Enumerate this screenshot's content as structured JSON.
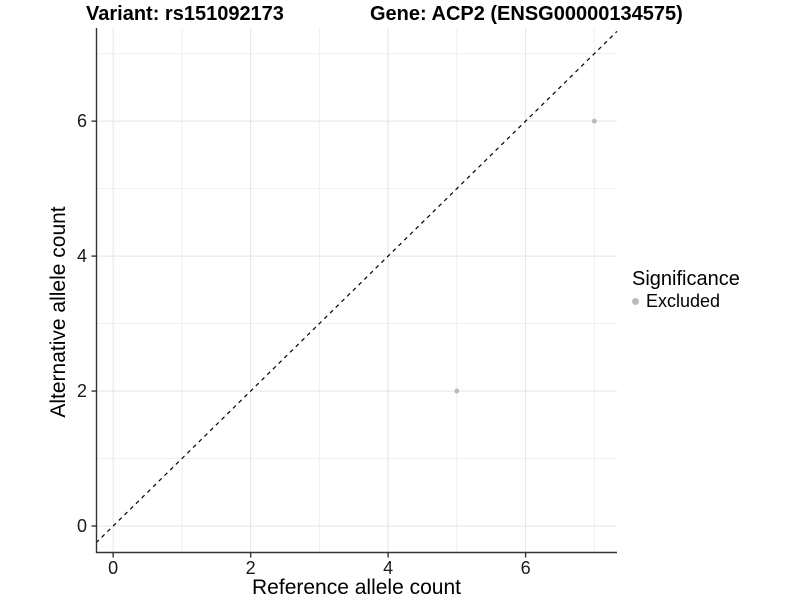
{
  "chart_data": {
    "type": "scatter",
    "title_left": "Variant: rs151092173",
    "title_right": "Gene: ACP2 (ENSG00000134575)",
    "xlabel": "Reference allele count",
    "ylabel": "Alternative allele count",
    "xlim": [
      -0.25,
      7.33
    ],
    "ylim": [
      -0.4,
      7.38
    ],
    "x_ticks": [
      0,
      2,
      4,
      6
    ],
    "y_ticks": [
      0,
      2,
      4,
      6
    ],
    "x_minor_ticks": [
      1,
      3,
      5,
      7
    ],
    "y_minor_ticks": [
      1,
      3,
      5,
      7
    ],
    "grid": true,
    "series": [
      {
        "name": "Excluded",
        "color": "#bcbcbc",
        "points": [
          [
            5,
            2
          ],
          [
            7,
            6
          ]
        ]
      }
    ],
    "reference_line": {
      "type": "identity y=x",
      "style": "dashed",
      "color": "#000000"
    },
    "legend": {
      "title": "Significance",
      "position": "right",
      "items": [
        {
          "label": "Excluded",
          "color": "#bcbcbc"
        }
      ]
    },
    "colors": {
      "grid_major": "#e4e4e4",
      "grid_minor": "#efefef",
      "axis_line": "#333333",
      "tick_text": "#1a1a1a"
    }
  }
}
